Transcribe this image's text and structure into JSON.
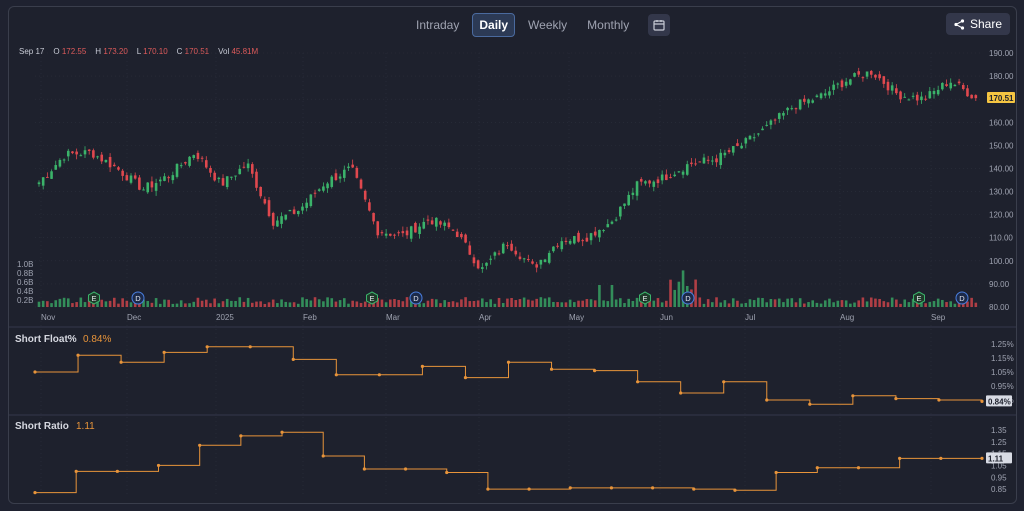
{
  "toolbar": {
    "tabs": [
      "Intraday",
      "Daily",
      "Weekly",
      "Monthly"
    ],
    "active_tab": "Daily",
    "calendar_icon": "calendar-icon",
    "share_label": "Share",
    "share_icon": "share-icon"
  },
  "ohlc": {
    "date": "Sep 17",
    "o_label": "O",
    "o": "172.55",
    "h_label": "H",
    "h": "173.20",
    "l_label": "L",
    "l": "170.10",
    "c_label": "C",
    "c": "170.51",
    "vol_label": "Vol",
    "vol": "45.81M"
  },
  "colors": {
    "up": "#3bb36a",
    "down": "#e0484e",
    "line": "#e8943a",
    "price_tag": "#f5c542",
    "grid": "#2c303d"
  },
  "price_axis": [
    "190.00",
    "180.00",
    "170.00",
    "160.00",
    "150.00",
    "140.00",
    "130.00",
    "120.00",
    "110.00",
    "100.00",
    "90.00",
    "80.00"
  ],
  "current_price_tag": "170.51",
  "volume_axis": [
    "1.0B",
    "0.8B",
    "0.6B",
    "0.4B",
    "0.2B"
  ],
  "x_axis": [
    "Nov",
    "Dec",
    "2025",
    "Feb",
    "Mar",
    "Apr",
    "May",
    "Jun",
    "Jul",
    "Aug",
    "Sep"
  ],
  "event_markers": [
    {
      "label": "E",
      "type": "earnings"
    },
    {
      "label": "D",
      "type": "dividend"
    },
    {
      "label": "E",
      "type": "earnings"
    },
    {
      "label": "D",
      "type": "dividend"
    },
    {
      "label": "E",
      "type": "earnings"
    },
    {
      "label": "D",
      "type": "dividend"
    },
    {
      "label": "E",
      "type": "earnings"
    },
    {
      "label": "D",
      "type": "dividend"
    }
  ],
  "short_float": {
    "title": "Short Float%",
    "value": "0.84%",
    "axis": [
      "1.25%",
      "1.15%",
      "1.05%",
      "0.95%",
      "0.85%"
    ],
    "tag": "0.84%"
  },
  "short_ratio": {
    "title": "Short Ratio",
    "value": "1.11",
    "axis": [
      "1.35",
      "1.25",
      "1.15",
      "1.05",
      "0.95",
      "0.85"
    ],
    "tag": "1.11"
  },
  "chart_data": [
    {
      "type": "candlestick",
      "title": "",
      "x_range": [
        "Oct 31",
        "Sep 17"
      ],
      "ylim": [
        80,
        190
      ],
      "grid": true,
      "close_approx": [
        {
          "x": "Oct 31",
          "y": 134
        },
        {
          "x": "Nov 10",
          "y": 146
        },
        {
          "x": "Nov 22",
          "y": 147
        },
        {
          "x": "Dec 5",
          "y": 140
        },
        {
          "x": "Dec 20",
          "y": 131
        },
        {
          "x": "Jan 3",
          "y": 137
        },
        {
          "x": "Jan 10",
          "y": 147
        },
        {
          "x": "Jan 17",
          "y": 133
        },
        {
          "x": "Jan 27",
          "y": 142
        },
        {
          "x": "Feb 3",
          "y": 117
        },
        {
          "x": "Feb 10",
          "y": 122
        },
        {
          "x": "Feb 20",
          "y": 134
        },
        {
          "x": "Feb 28",
          "y": 140
        },
        {
          "x": "Mar 10",
          "y": 113
        },
        {
          "x": "Mar 17",
          "y": 111
        },
        {
          "x": "Mar 24",
          "y": 118
        },
        {
          "x": "Mar 31",
          "y": 113
        },
        {
          "x": "Apr 8",
          "y": 96
        },
        {
          "x": "Apr 11",
          "y": 108
        },
        {
          "x": "Apr 21",
          "y": 97
        },
        {
          "x": "Apr 28",
          "y": 109
        },
        {
          "x": "May 5",
          "y": 110
        },
        {
          "x": "May 13",
          "y": 117
        },
        {
          "x": "May 20",
          "y": 133
        },
        {
          "x": "Jun 2",
          "y": 136
        },
        {
          "x": "Jun 10",
          "y": 142
        },
        {
          "x": "Jun 18",
          "y": 144
        },
        {
          "x": "Jun 30",
          "y": 150
        },
        {
          "x": "Jul 10",
          "y": 158
        },
        {
          "x": "Jul 20",
          "y": 167
        },
        {
          "x": "Jul 30",
          "y": 171
        },
        {
          "x": "Aug 8",
          "y": 178
        },
        {
          "x": "Aug 20",
          "y": 182
        },
        {
          "x": "Aug 28",
          "y": 172
        },
        {
          "x": "Sep 3",
          "y": 170
        },
        {
          "x": "Sep 10",
          "y": 178
        },
        {
          "x": "Sep 17",
          "y": 170.51
        }
      ],
      "volume_range": [
        "0",
        "1.0B"
      ]
    },
    {
      "type": "line",
      "title": "Short Float%",
      "step": true,
      "ylim": [
        0.8,
        1.3
      ],
      "values": [
        1.05,
        1.17,
        1.12,
        1.19,
        1.23,
        1.23,
        1.14,
        1.03,
        1.03,
        1.09,
        1.01,
        1.12,
        1.07,
        1.06,
        0.98,
        0.9,
        0.98,
        0.85,
        0.82,
        0.88,
        0.86,
        0.85,
        0.84
      ]
    },
    {
      "type": "line",
      "title": "Short Ratio",
      "step": true,
      "ylim": [
        0.8,
        1.4
      ],
      "values": [
        0.82,
        1.0,
        1.0,
        1.05,
        1.22,
        1.3,
        1.33,
        1.13,
        1.02,
        1.02,
        0.99,
        0.85,
        0.85,
        0.86,
        0.86,
        0.86,
        0.85,
        0.84,
        0.99,
        1.03,
        1.03,
        1.11,
        1.11,
        1.11
      ]
    }
  ]
}
